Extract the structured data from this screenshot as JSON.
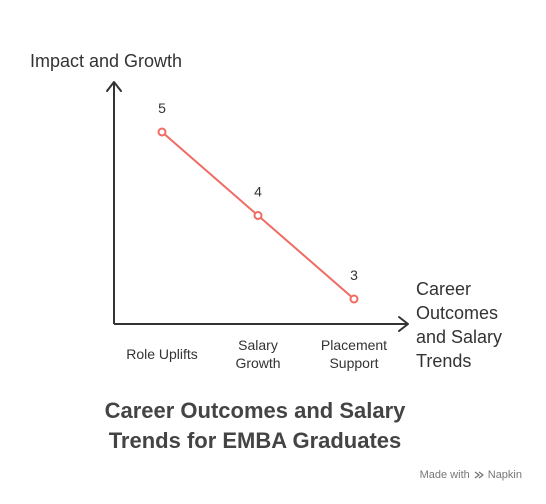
{
  "chart_data": {
    "type": "line",
    "title": "Career Outcomes and Salary Trends for EMBA Graduates",
    "title_lines": [
      "Career Outcomes and Salary",
      "Trends for EMBA Graduates"
    ],
    "ylabel": "Impact and Growth",
    "xlabel": "Career Outcomes and Salary Trends",
    "xlabel_lines": [
      "Career",
      "Outcomes",
      "and Salary",
      "Trends"
    ],
    "categories": [
      "Role Uplifts",
      "Salary Growth",
      "Placement Support"
    ],
    "category_lines": [
      [
        "Role Uplifts"
      ],
      [
        "Salary",
        "Growth"
      ],
      [
        "Placement",
        "Support"
      ]
    ],
    "series": [
      {
        "values": [
          5,
          4,
          3
        ]
      }
    ],
    "ylim": [
      2,
      6
    ],
    "grid": false,
    "legend": "none",
    "colors": {
      "line": "#ef6b63",
      "axis": "#333333",
      "title": "#444444"
    }
  },
  "credit": {
    "text": "Made with",
    "brand": "Napkin",
    "icon": "napkin-logo-icon"
  }
}
